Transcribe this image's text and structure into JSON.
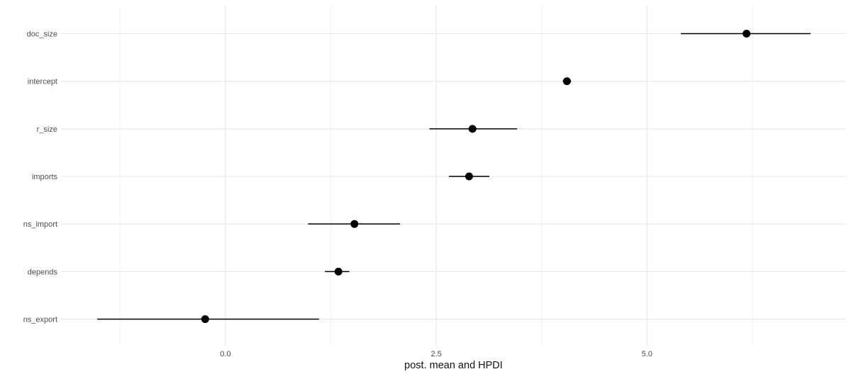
{
  "chart_data": {
    "type": "scatter",
    "subtype": "forest-dot-interval",
    "title": "",
    "xlabel": "post. mean and HPDI",
    "ylabel": "",
    "legend_position": "none",
    "categories": [
      "doc_size",
      "intercept",
      "r_size",
      "imports",
      "ns_import",
      "depends",
      "ns_export"
    ],
    "points": [
      {
        "label": "doc_size",
        "mean": 6.18,
        "hpdi_low": 5.4,
        "hpdi_high": 6.94
      },
      {
        "label": "intercept",
        "mean": 4.05,
        "hpdi_low": 4.0,
        "hpdi_high": 4.1
      },
      {
        "label": "r_size",
        "mean": 2.93,
        "hpdi_low": 2.42,
        "hpdi_high": 3.46
      },
      {
        "label": "imports",
        "mean": 2.89,
        "hpdi_low": 2.65,
        "hpdi_high": 3.13
      },
      {
        "label": "ns_import",
        "mean": 1.53,
        "hpdi_low": 0.98,
        "hpdi_high": 2.07
      },
      {
        "label": "depends",
        "mean": 1.34,
        "hpdi_low": 1.18,
        "hpdi_high": 1.47
      },
      {
        "label": "ns_export",
        "mean": -0.24,
        "hpdi_low": -1.52,
        "hpdi_high": 1.11
      }
    ],
    "xlim": [
      -1.95,
      7.36
    ],
    "x_ticks": [
      {
        "value": 0.0,
        "label": "0.0"
      },
      {
        "value": 2.5,
        "label": "2.5"
      },
      {
        "value": 5.0,
        "label": "5.0"
      }
    ],
    "x_minor_ticks": [
      -1.25,
      1.25,
      3.75,
      6.25
    ],
    "grid": {
      "vertical_major": true,
      "vertical_minor": true,
      "horizontal_major": true,
      "background": "none"
    },
    "colors": {
      "point": "#000000",
      "interval": "#000000",
      "grid_major": "#e9e9e9",
      "grid_minor": "#f3f3f3",
      "axis_text": "#4d4d4d",
      "axis_title": "#111111",
      "background": "#ffffff"
    }
  }
}
